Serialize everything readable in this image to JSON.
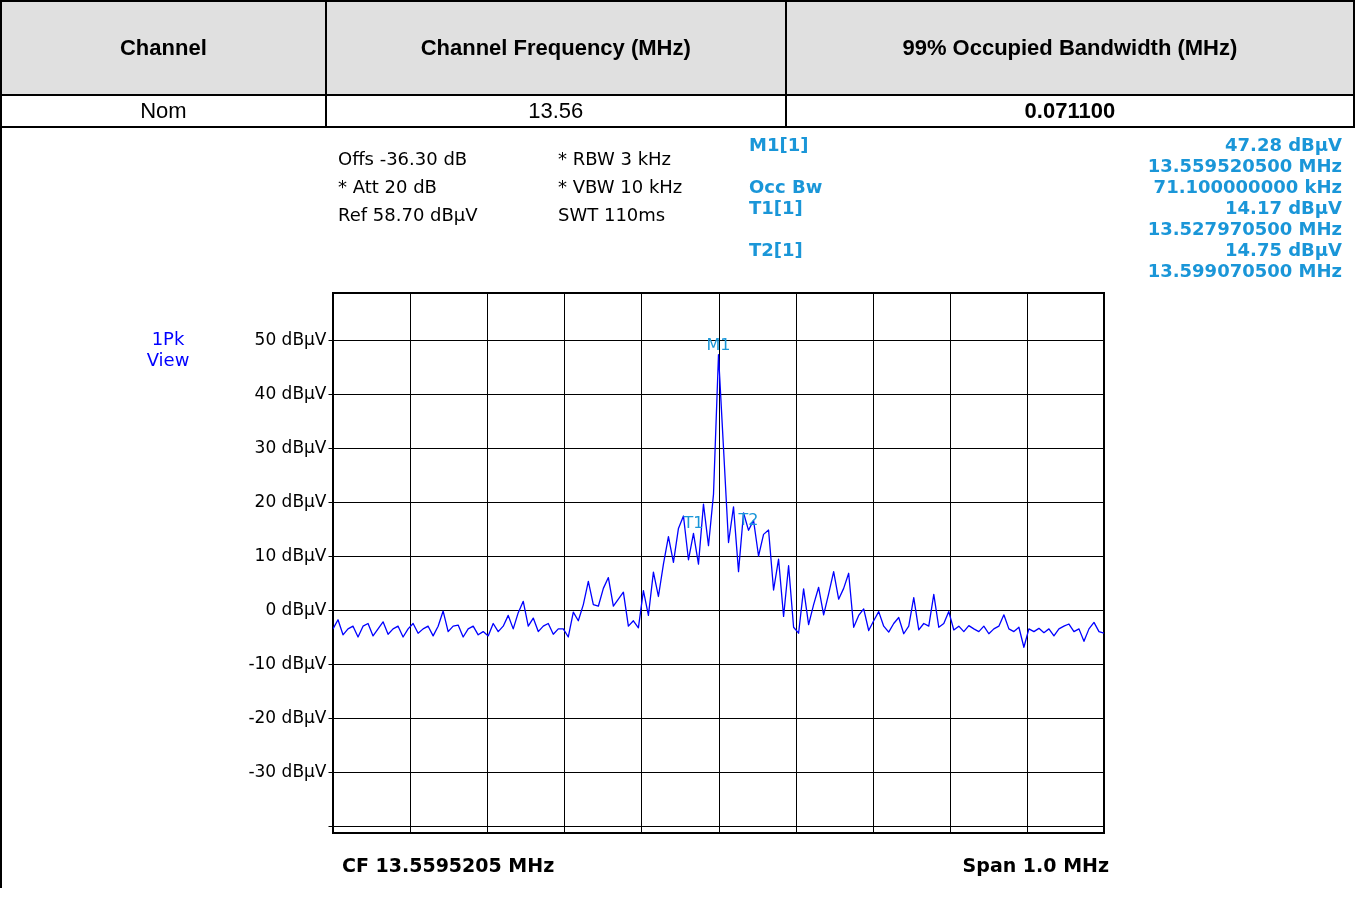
{
  "chart_data": [
    {
      "type": "other",
      "annotations": [
        "Channel",
        "Channel Frequency (MHz)",
        "99% Occupied Bandwidth (MHz)",
        "Nom",
        "13.56",
        "0.071100"
      ]
    },
    {
      "type": "line",
      "categories": [
        null,
        null,
        null,
        null,
        null,
        null,
        null,
        null,
        null,
        null,
        null,
        null,
        null,
        null,
        null,
        null,
        null,
        null,
        null,
        null,
        null,
        null,
        null,
        null,
        null,
        null,
        null,
        null,
        null,
        null,
        null,
        null,
        null,
        null,
        null,
        null,
        null,
        null,
        null,
        null,
        null,
        null,
        null,
        null,
        null,
        null,
        null,
        null,
        null,
        null,
        null,
        null,
        null,
        null,
        null,
        null,
        null,
        null,
        null,
        null,
        null,
        null,
        null,
        null,
        null,
        null,
        null,
        null,
        null,
        null,
        null,
        null,
        null,
        null,
        null,
        null,
        null,
        null,
        null,
        null,
        null,
        null,
        null,
        null,
        null,
        null,
        null,
        null,
        null,
        null,
        null,
        null,
        null,
        null,
        null,
        null,
        null,
        null,
        null,
        null,
        null,
        null,
        null,
        null,
        null,
        null,
        null,
        null,
        null,
        null,
        null,
        null,
        null,
        null,
        null,
        null,
        null,
        null,
        null,
        null,
        null,
        null,
        null,
        null,
        null,
        null,
        null,
        null,
        null,
        null,
        null,
        null,
        null,
        null,
        null,
        null,
        null,
        null,
        null,
        null,
        null,
        null,
        null,
        null,
        null,
        null,
        null,
        null,
        null,
        null,
        null,
        null,
        null,
        null,
        null
      ],
      "series": [
        {
          "name": "1Pk View",
          "color": "#0000ff",
          "values": [
            -3.5,
            -1.8,
            -4.6,
            -3.5,
            -3,
            -5,
            -3,
            -2.5,
            -4.8,
            -3.5,
            -2.2,
            -4.5,
            -3.5,
            -3,
            -5,
            -3.5,
            -2.5,
            -4.3,
            -3.5,
            -3,
            -4.8,
            -3,
            -0.2,
            -4,
            -3,
            -2.8,
            -5,
            -3.5,
            -3,
            -4.6,
            -4,
            -4.8,
            -2.5,
            -4,
            -3,
            -1,
            -3.5,
            -0.5,
            1.6,
            -3,
            -1.5,
            -4,
            -3,
            -2.5,
            -4.5,
            -3.5,
            -3.5,
            -5,
            -0.4,
            -2,
            1,
            5.3,
            1,
            0.7,
            4,
            6.0,
            0.7,
            2,
            3.3,
            -3,
            -2,
            -3.3,
            3.6,
            -1,
            7.0,
            2.5,
            8.5,
            13.6,
            8.8,
            15.1,
            17.4,
            9.3,
            14.17,
            8.5,
            19.6,
            11.9,
            21.4,
            47.28,
            30,
            12.5,
            19.1,
            7.1,
            18.0,
            14.75,
            16.6,
            10,
            14,
            14.8,
            3.7,
            9.4,
            -1.2,
            8.2,
            -3.2,
            -4.3,
            3.9,
            -2.7,
            1,
            4.2,
            -0.9,
            3,
            7.1,
            2,
            4,
            6.8,
            -3.2,
            -1,
            0.2,
            -3.8,
            -2,
            -0.3,
            -3,
            -4.1,
            -2.5,
            -1.4,
            -4.4,
            -3,
            2.3,
            -3.7,
            -2.5,
            -3,
            2.9,
            -3.2,
            -2.5,
            -0.3,
            -3.7,
            -3,
            -4,
            -2.9,
            -3.5,
            -4,
            -3,
            -4.4,
            -3.5,
            -3,
            -0.9,
            -3.5,
            -4,
            -3.2,
            -6.9,
            -3.5,
            -4,
            -3.4,
            -4.2,
            -3.5,
            -4.8,
            -3.5,
            -3,
            -2.6,
            -4,
            -3.5,
            -5.8,
            -3.5,
            -2.3,
            -4,
            -4.3
          ]
        }
      ],
      "ylim": [
        -41.3,
        58.7
      ],
      "yticks": [
        {
          "value": 50,
          "label": "50 dBµV"
        },
        {
          "value": 40,
          "label": "40 dBµV"
        },
        {
          "value": 30,
          "label": "30 dBµV"
        },
        {
          "value": 20,
          "label": "20 dBµV"
        },
        {
          "value": 10,
          "label": "10 dBµV"
        },
        {
          "value": 0,
          "label": "0 dBµV"
        },
        {
          "value": -10,
          "label": "-10 dBµV"
        },
        {
          "value": -20,
          "label": "-20 dBµV"
        },
        {
          "value": -30,
          "label": "-30 dBµV"
        },
        {
          "value": -40,
          "label": null
        }
      ],
      "grid": true,
      "tick_labels": "y",
      "annotations": [
        "Offs -36.30 dB",
        "* RBW 3 kHz",
        "* Att 20 dB",
        "* VBW 10 kHz",
        "Ref 58.70 dBµV",
        "SWT 110ms",
        "M1[1]",
        "47.28 dBµV",
        "13.559520500 MHz",
        "Occ Bw",
        "71.100000000 kHz",
        "T1[1]",
        "14.17 dBµV",
        "13.527970500 MHz",
        "T2[1]",
        "14.75 dBµV",
        "13.599070500 MHz",
        "CF 13.5595205 MHz",
        "Span 1.0 MHz",
        {
          "text": "M1",
          "y": 47.28
        },
        {
          "text": "T1",
          "y": 14.17
        },
        {
          "text": "T2",
          "y": 14.75
        }
      ]
    }
  ]
}
